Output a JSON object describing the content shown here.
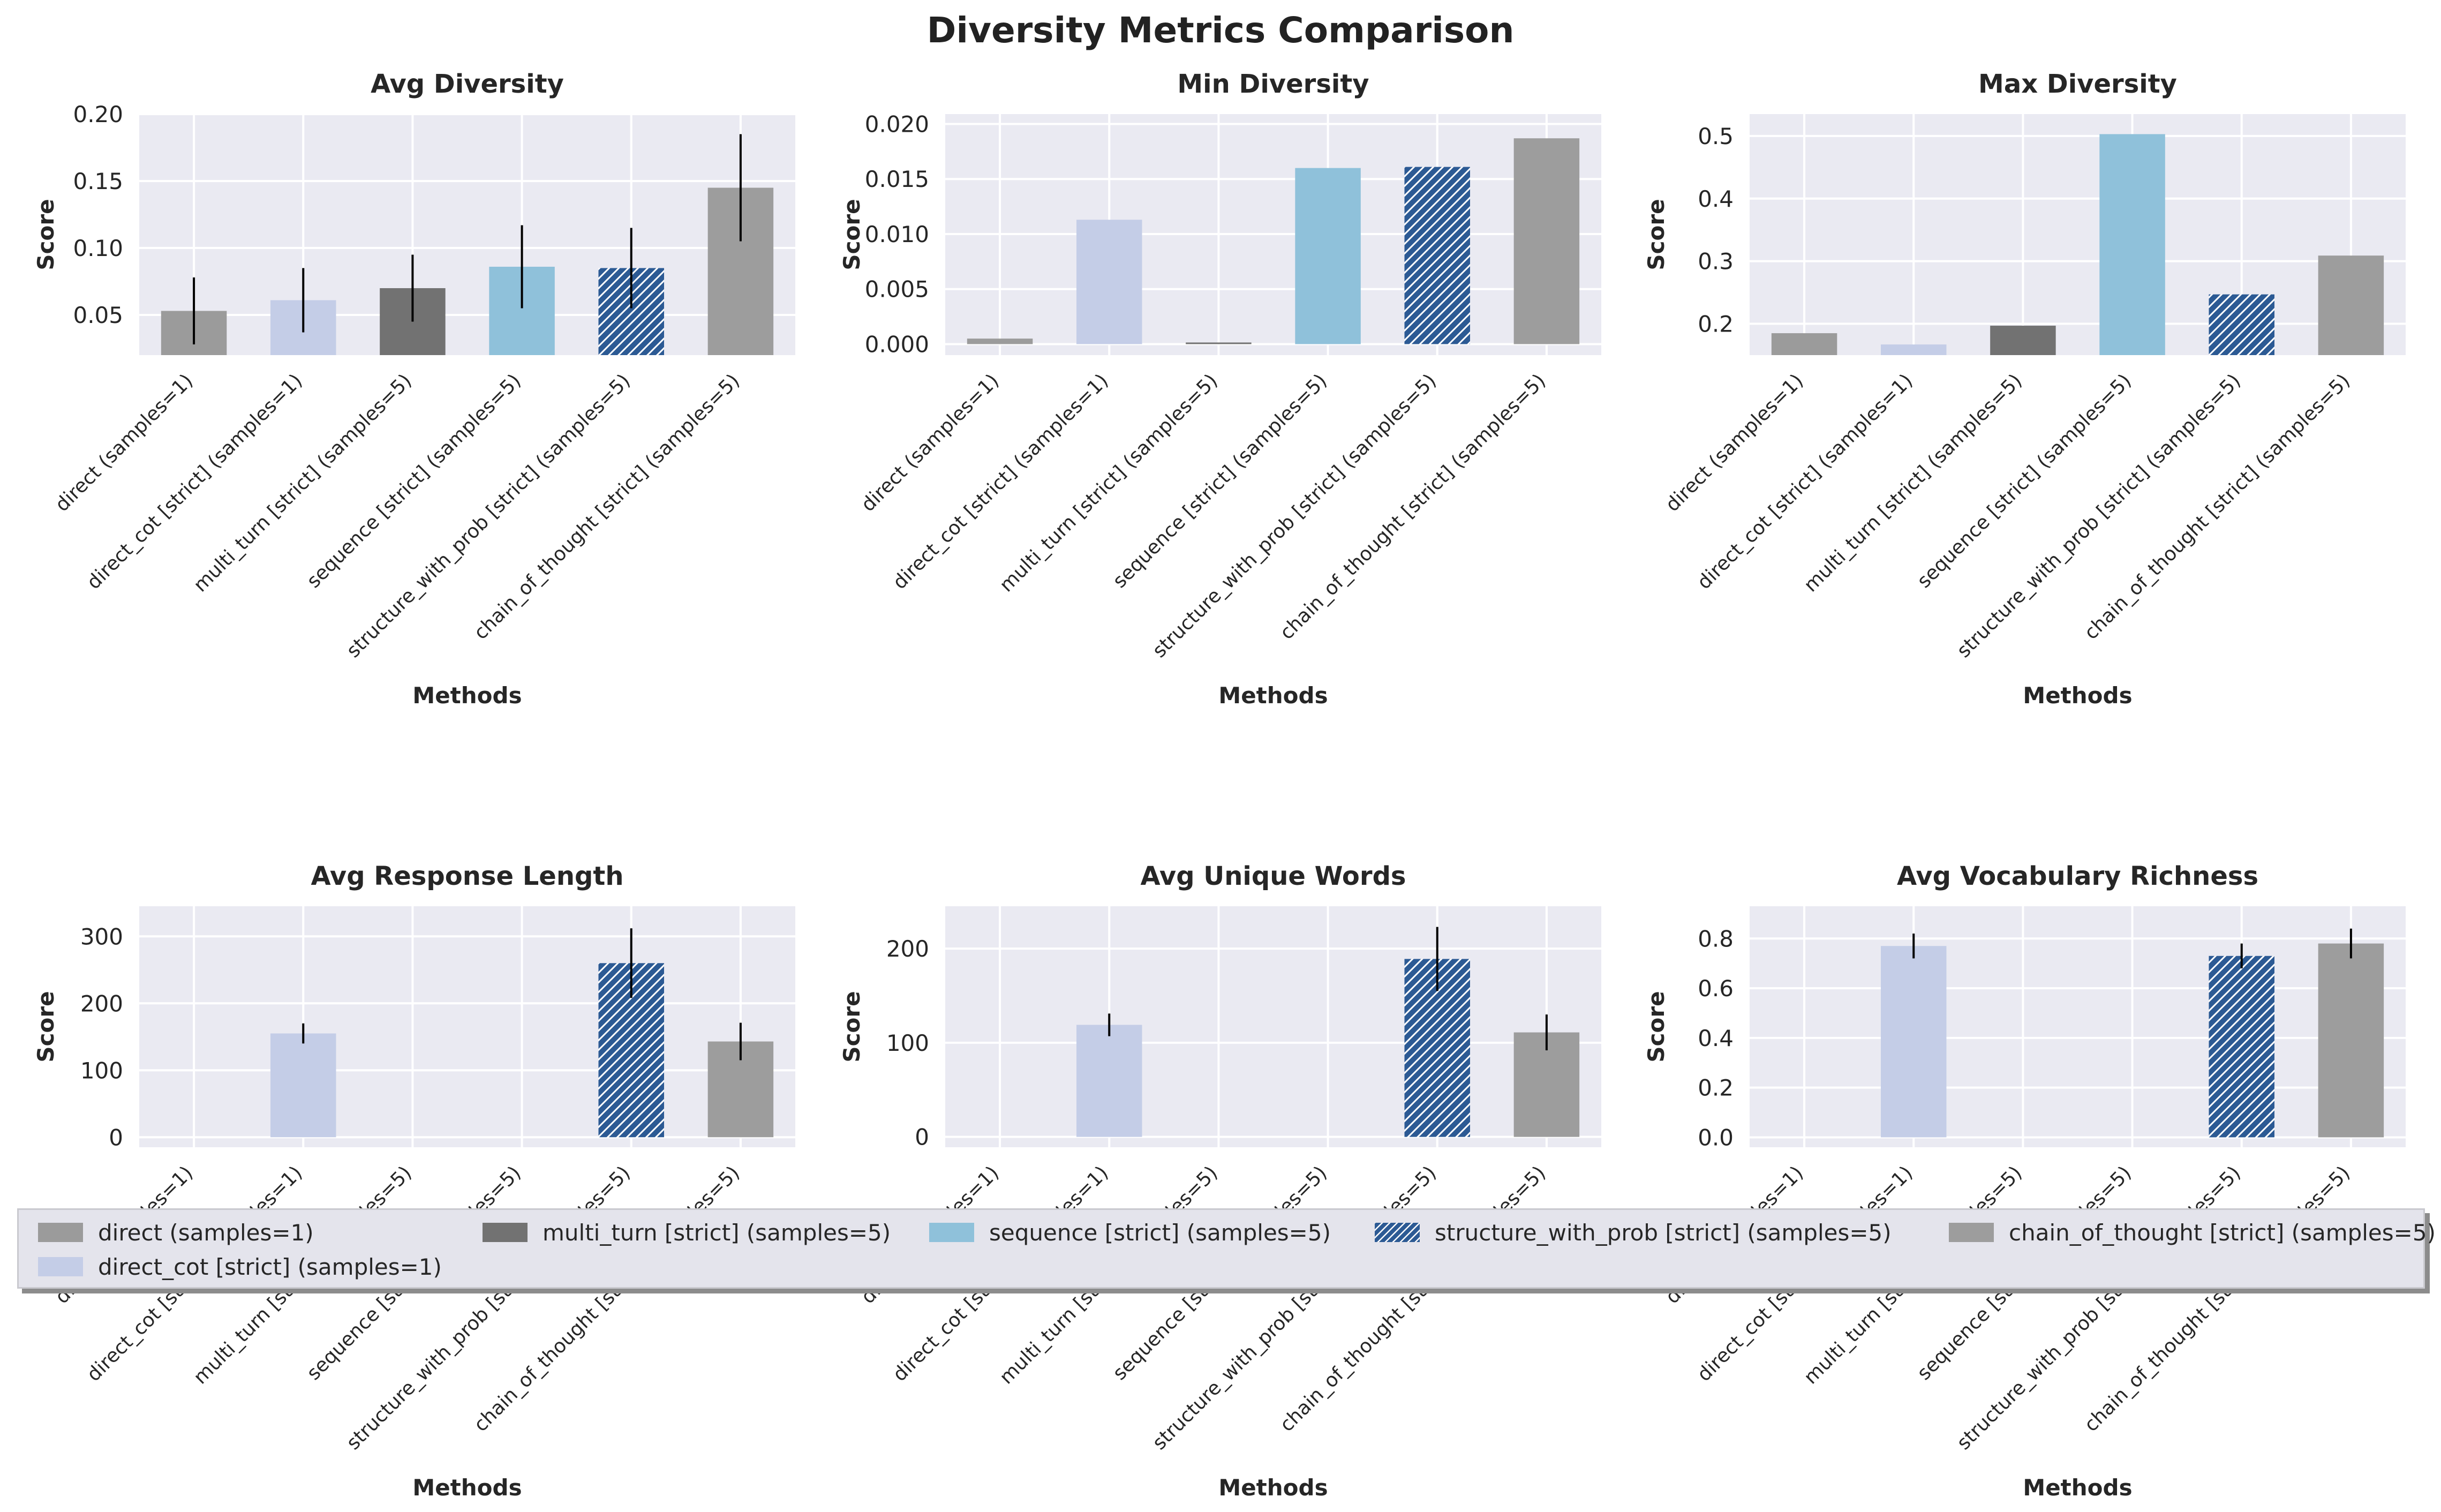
{
  "title": "Diversity Metrics Comparison",
  "colors": {
    "direct": "#9b9b9b",
    "direct_cot": "#c4cde7",
    "multi_turn": "#727272",
    "sequence": "#8fc1da",
    "structure_with_prob": "#2c5a94",
    "chain_of_thought": "#9d9d9d",
    "plot_bg": "#eaeaf2",
    "grid": "#ffffff"
  },
  "legend": {
    "items": [
      {
        "label": "direct (samples=1)",
        "color_key": "direct",
        "hatch": false
      },
      {
        "label": "direct_cot [strict] (samples=1)",
        "color_key": "direct_cot",
        "hatch": false
      },
      {
        "label": "multi_turn [strict] (samples=5)",
        "color_key": "multi_turn",
        "hatch": false
      },
      {
        "label": "sequence [strict] (samples=5)",
        "color_key": "sequence",
        "hatch": false
      },
      {
        "label": "structure_with_prob [strict] (samples=5)",
        "color_key": "structure_with_prob",
        "hatch": true
      },
      {
        "label": "chain_of_thought [strict] (samples=5)",
        "color_key": "chain_of_thought",
        "hatch": false
      }
    ]
  },
  "chart_data": [
    {
      "type": "bar",
      "title": "Avg Diversity",
      "xlabel": "Methods",
      "ylabel": "Score",
      "ylim": [
        0.02,
        0.2
      ],
      "yticks": [
        0.05,
        0.1,
        0.15,
        0.2
      ],
      "ytick_labels": [
        "0.05",
        "0.10",
        "0.15",
        "0.20"
      ],
      "categories": [
        "direct (samples=1)",
        "direct_cot [strict] (samples=1)",
        "multi_turn [strict] (samples=5)",
        "sequence [strict] (samples=5)",
        "structure_with_prob [strict] (samples=5)",
        "chain_of_thought [strict] (samples=5)"
      ],
      "values": [
        0.053,
        0.061,
        0.07,
        0.086,
        0.085,
        0.145
      ],
      "errors": [
        0.025,
        0.024,
        0.025,
        0.031,
        0.03,
        0.04
      ]
    },
    {
      "type": "bar",
      "title": "Min Diversity",
      "xlabel": "Methods",
      "ylabel": "Score",
      "ylim": [
        -0.001,
        0.0209
      ],
      "yticks": [
        0.0,
        0.005,
        0.01,
        0.015,
        0.02
      ],
      "ytick_labels": [
        "0.000",
        "0.005",
        "0.010",
        "0.015",
        "0.020"
      ],
      "categories": [
        "direct (samples=1)",
        "direct_cot [strict] (samples=1)",
        "multi_turn [strict] (samples=5)",
        "sequence [strict] (samples=5)",
        "structure_with_prob [strict] (samples=5)",
        "chain_of_thought [strict] (samples=5)"
      ],
      "values": [
        0.0005,
        0.0113,
        0.0001,
        0.016,
        0.0161,
        0.0187
      ],
      "errors": [
        0,
        0,
        0,
        0,
        0,
        0
      ]
    },
    {
      "type": "bar",
      "title": "Max Diversity",
      "xlabel": "Methods",
      "ylabel": "Score",
      "ylim": [
        0.15,
        0.535
      ],
      "yticks": [
        0.2,
        0.3,
        0.4,
        0.5
      ],
      "ytick_labels": [
        "0.2",
        "0.3",
        "0.4",
        "0.5"
      ],
      "categories": [
        "direct (samples=1)",
        "direct_cot [strict] (samples=1)",
        "multi_turn [strict] (samples=5)",
        "sequence [strict] (samples=5)",
        "structure_with_prob [strict] (samples=5)",
        "chain_of_thought [strict] (samples=5)"
      ],
      "values": [
        0.185,
        0.167,
        0.197,
        0.503,
        0.247,
        0.309
      ],
      "errors": [
        0,
        0,
        0,
        0,
        0,
        0
      ]
    },
    {
      "type": "bar",
      "title": "Avg Response Length",
      "xlabel": "Methods",
      "ylabel": "Score",
      "ylim": [
        -15,
        345
      ],
      "yticks": [
        0,
        100,
        200,
        300
      ],
      "ytick_labels": [
        "0",
        "100",
        "200",
        "300"
      ],
      "categories": [
        "direct (samples=1)",
        "direct_cot [strict] (samples=1)",
        "multi_turn [strict] (samples=5)",
        "sequence [strict] (samples=5)",
        "structure_with_prob [strict] (samples=5)",
        "chain_of_thought [strict] (samples=5)"
      ],
      "values": [
        0,
        155,
        0,
        0,
        260,
        143
      ],
      "errors": [
        0,
        15,
        0,
        0,
        52,
        28
      ]
    },
    {
      "type": "bar",
      "title": "Avg Unique Words",
      "xlabel": "Methods",
      "ylabel": "Score",
      "ylim": [
        -11,
        245
      ],
      "yticks": [
        0,
        100,
        200
      ],
      "ytick_labels": [
        "0",
        "100",
        "200"
      ],
      "categories": [
        "direct (samples=1)",
        "direct_cot [strict] (samples=1)",
        "multi_turn [strict] (samples=5)",
        "sequence [strict] (samples=5)",
        "structure_with_prob [strict] (samples=5)",
        "chain_of_thought [strict] (samples=5)"
      ],
      "values": [
        0,
        119,
        0,
        0,
        189,
        111
      ],
      "errors": [
        0,
        12,
        0,
        0,
        34,
        19
      ]
    },
    {
      "type": "bar",
      "title": "Avg Vocabulary Richness",
      "xlabel": "Methods",
      "ylabel": "Score",
      "ylim": [
        -0.04,
        0.93
      ],
      "yticks": [
        0.0,
        0.2,
        0.4,
        0.6,
        0.8
      ],
      "ytick_labels": [
        "0.0",
        "0.2",
        "0.4",
        "0.6",
        "0.8"
      ],
      "categories": [
        "direct (samples=1)",
        "direct_cot [strict] (samples=1)",
        "multi_turn [strict] (samples=5)",
        "sequence [strict] (samples=5)",
        "structure_with_prob [strict] (samples=5)",
        "chain_of_thought [strict] (samples=5)"
      ],
      "values": [
        0,
        0.77,
        0,
        0,
        0.73,
        0.78
      ],
      "errors": [
        0,
        0.05,
        0,
        0,
        0.05,
        0.06
      ]
    }
  ]
}
